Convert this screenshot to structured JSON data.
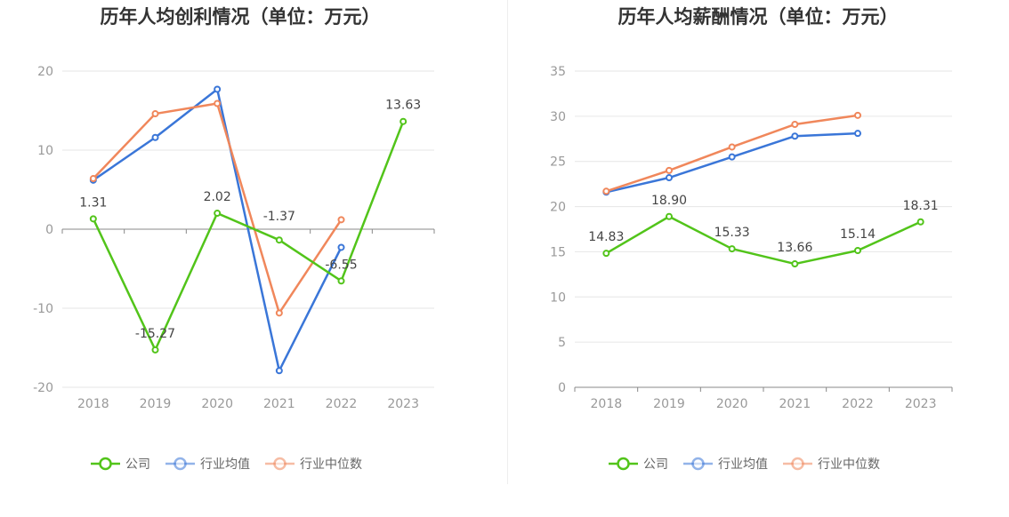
{
  "colors": {
    "company": "#52c41a",
    "industry_avg": "#3a76d8",
    "industry_median": "#f0875b",
    "grid": "#e6e6e6",
    "axis": "#888888"
  },
  "chart_data": [
    {
      "type": "line",
      "title": "历年人均创利情况（单位：万元）",
      "categories": [
        "2018",
        "2019",
        "2020",
        "2021",
        "2022",
        "2023"
      ],
      "ylim": [
        -20,
        20
      ],
      "yticks": [
        20,
        10,
        0,
        -10,
        -20
      ],
      "grid": true,
      "legend_position": "bottom",
      "series": [
        {
          "name": "公司",
          "key": "company",
          "values": [
            1.31,
            -15.27,
            2.02,
            -1.37,
            -6.55,
            13.63
          ],
          "labels": [
            "1.31",
            "-15.27",
            "2.02",
            "-1.37",
            "-6.55",
            "13.63"
          ]
        },
        {
          "name": "行业均值",
          "key": "industry_avg",
          "values": [
            6.2,
            11.6,
            17.7,
            -17.9,
            -2.3,
            null
          ]
        },
        {
          "name": "行业中位数",
          "key": "industry_median",
          "values": [
            6.4,
            14.6,
            15.9,
            -10.6,
            1.2,
            null
          ]
        }
      ]
    },
    {
      "type": "line",
      "title": "历年人均薪酬情况（单位：万元）",
      "categories": [
        "2018",
        "2019",
        "2020",
        "2021",
        "2022",
        "2023"
      ],
      "ylim": [
        0,
        35
      ],
      "yticks": [
        35,
        30,
        25,
        20,
        15,
        10,
        5,
        0
      ],
      "grid": true,
      "legend_position": "bottom",
      "series": [
        {
          "name": "公司",
          "key": "company",
          "values": [
            14.83,
            18.9,
            15.33,
            13.66,
            15.14,
            18.31
          ],
          "labels": [
            "14.83",
            "18.90",
            "15.33",
            "13.66",
            "15.14",
            "18.31"
          ]
        },
        {
          "name": "行业均值",
          "key": "industry_avg",
          "values": [
            21.6,
            23.2,
            25.5,
            27.8,
            28.1,
            null
          ]
        },
        {
          "name": "行业中位数",
          "key": "industry_median",
          "values": [
            21.7,
            24.0,
            26.6,
            29.1,
            30.1,
            null
          ]
        }
      ]
    }
  ]
}
